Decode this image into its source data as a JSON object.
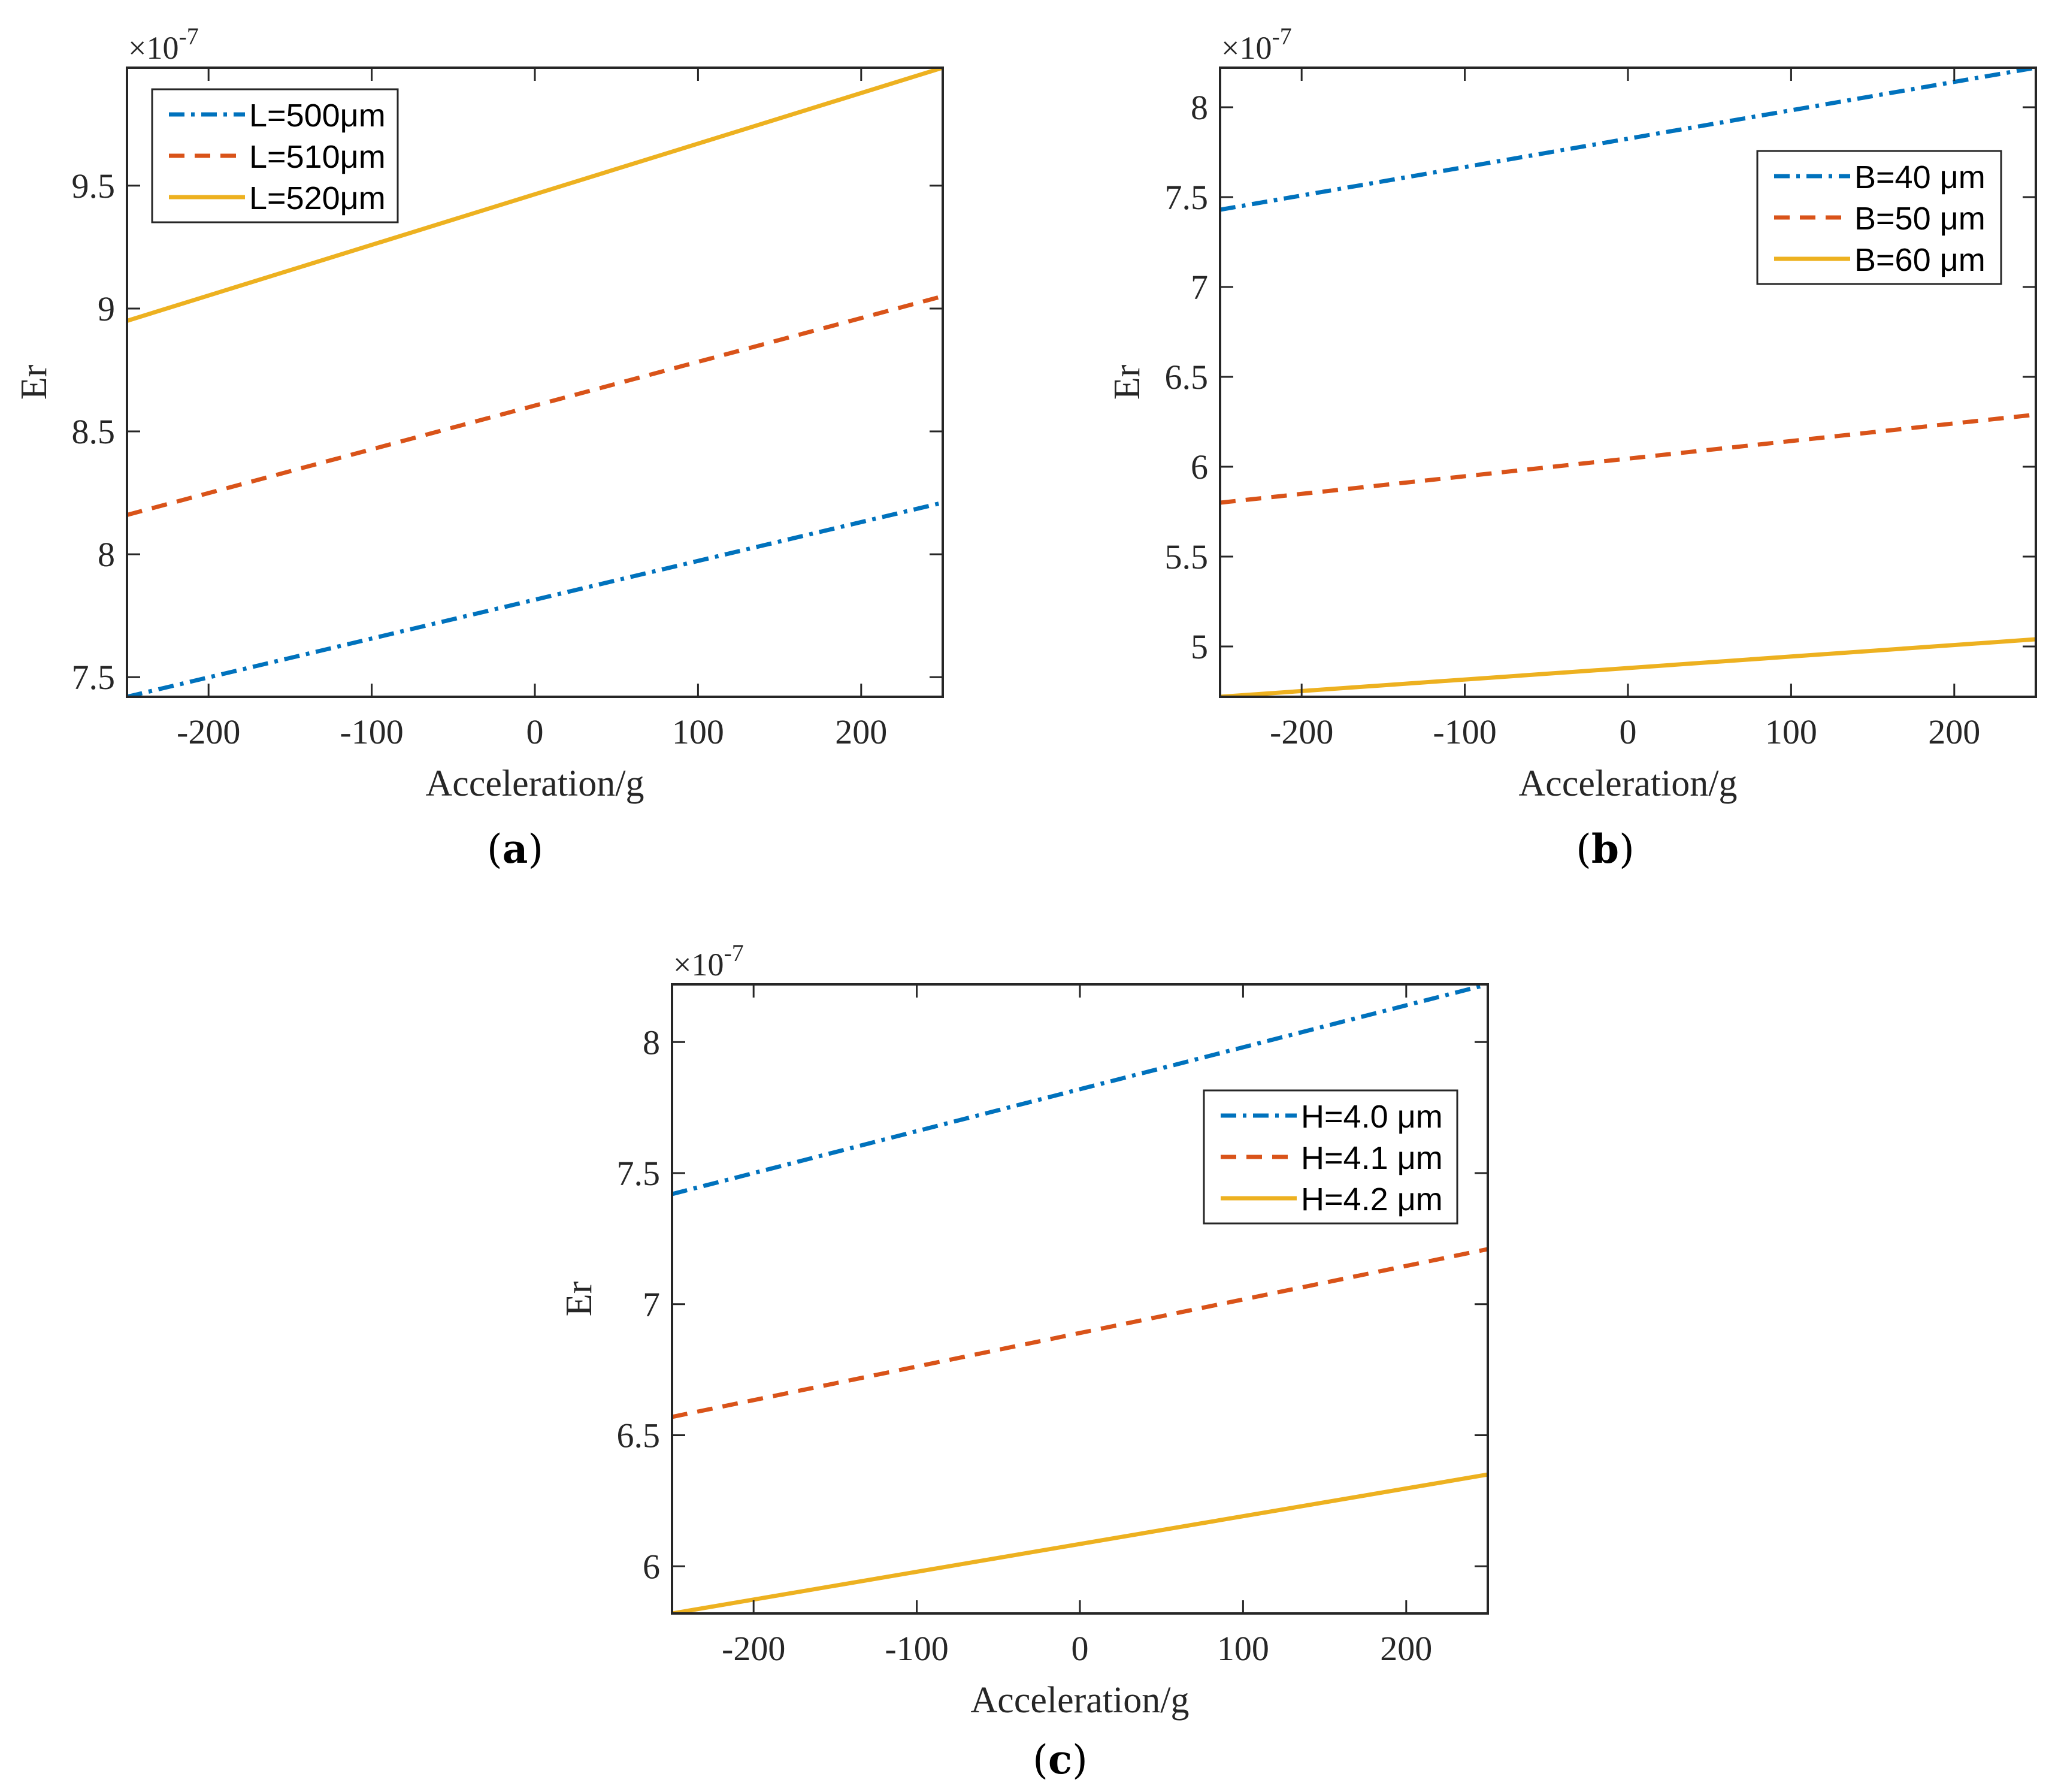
{
  "colors": {
    "blue": "#0072BD",
    "orange": "#D95319",
    "yellow": "#EDB120",
    "axis": "#262626"
  },
  "chart_data": [
    {
      "type": "line",
      "panel_label": "(a)",
      "xlabel": "Acceleration/g",
      "ylabel": "Er",
      "exponent_label": "×10",
      "exponent_power": "-7",
      "xlim": [
        -250,
        250
      ],
      "ylim": [
        7.42,
        9.98
      ],
      "xticks": [
        -200,
        -100,
        0,
        100,
        200
      ],
      "xtick_labels": [
        "-200",
        "-100",
        "0",
        "100",
        "200"
      ],
      "yticks": [
        7.5,
        8,
        8.5,
        9,
        9.5
      ],
      "ytick_labels": [
        "7.5",
        "8",
        "8.5",
        "9",
        "9.5"
      ],
      "legend_location": "top-left",
      "series": [
        {
          "name": "L=500μm",
          "style": "dashdot",
          "color": "#0072BD",
          "x": [
            -250,
            250
          ],
          "y": [
            7.42,
            8.21
          ]
        },
        {
          "name": "L=510μm",
          "style": "dash",
          "color": "#D95319",
          "x": [
            -250,
            250
          ],
          "y": [
            8.16,
            9.05
          ]
        },
        {
          "name": "L=520μm",
          "style": "solid",
          "color": "#EDB120",
          "x": [
            -250,
            250
          ],
          "y": [
            8.95,
            9.98
          ]
        }
      ]
    },
    {
      "type": "line",
      "panel_label": "(b)",
      "xlabel": "Acceleration/g",
      "ylabel": "Er",
      "exponent_label": "×10",
      "exponent_power": "-7",
      "xlim": [
        -250,
        250
      ],
      "ylim": [
        4.72,
        8.22
      ],
      "xticks": [
        -200,
        -100,
        0,
        100,
        200
      ],
      "xtick_labels": [
        "-200",
        "-100",
        "0",
        "100",
        "200"
      ],
      "yticks": [
        5,
        5.5,
        6,
        6.5,
        7,
        7.5,
        8
      ],
      "ytick_labels": [
        "5",
        "5.5",
        "6",
        "6.5",
        "7",
        "7.5",
        "8"
      ],
      "legend_location": "top-right",
      "series": [
        {
          "name": "B=40 μm",
          "style": "dashdot",
          "color": "#0072BD",
          "x": [
            -250,
            250
          ],
          "y": [
            7.43,
            8.22
          ]
        },
        {
          "name": "B=50 μm",
          "style": "dash",
          "color": "#D95319",
          "x": [
            -250,
            250
          ],
          "y": [
            5.8,
            6.29
          ]
        },
        {
          "name": "B=60 μm",
          "style": "solid",
          "color": "#EDB120",
          "x": [
            -250,
            250
          ],
          "y": [
            4.72,
            5.04
          ]
        }
      ]
    },
    {
      "type": "line",
      "panel_label": "(c)",
      "xlabel": "Acceleration/g",
      "ylabel": "Er",
      "exponent_label": "×10",
      "exponent_power": "-7",
      "xlim": [
        -250,
        250
      ],
      "ylim": [
        5.82,
        8.22
      ],
      "xticks": [
        -200,
        -100,
        0,
        100,
        200
      ],
      "xtick_labels": [
        "-200",
        "-100",
        "0",
        "100",
        "200"
      ],
      "yticks": [
        6,
        6.5,
        7,
        7.5,
        8
      ],
      "ytick_labels": [
        "6",
        "6.5",
        "7",
        "7.5",
        "8"
      ],
      "legend_location": "top-right",
      "series": [
        {
          "name": "H=4.0 μm",
          "style": "dashdot",
          "color": "#0072BD",
          "x": [
            -250,
            250
          ],
          "y": [
            7.42,
            8.22
          ]
        },
        {
          "name": "H=4.1 μm",
          "style": "dash",
          "color": "#D95319",
          "x": [
            -250,
            250
          ],
          "y": [
            6.57,
            7.21
          ]
        },
        {
          "name": "H=4.2 μm",
          "style": "solid",
          "color": "#EDB120",
          "x": [
            -250,
            250
          ],
          "y": [
            5.82,
            6.35
          ]
        }
      ]
    }
  ]
}
